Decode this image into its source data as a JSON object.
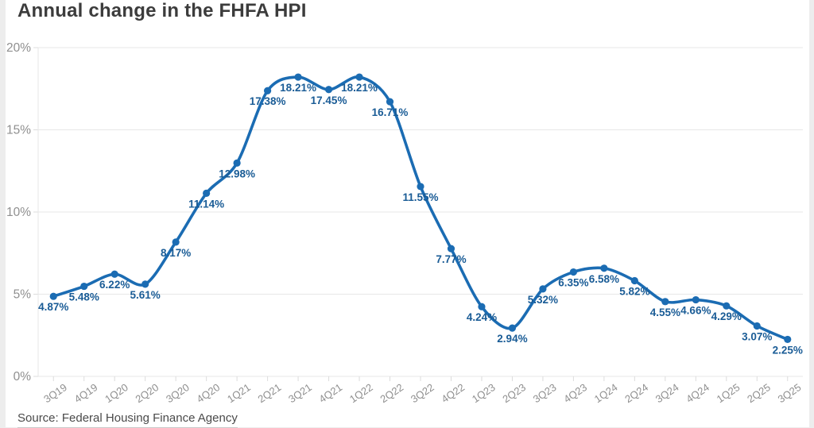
{
  "page": {
    "source": "Source: Federal Housing Finance Agency"
  },
  "chart_data": {
    "type": "line",
    "title": "Annual change in the FHFA HPI",
    "categories": [
      "3Q19",
      "4Q19",
      "1Q20",
      "2Q20",
      "3Q20",
      "4Q20",
      "1Q21",
      "2Q21",
      "3Q21",
      "4Q21",
      "1Q22",
      "2Q22",
      "3Q22",
      "4Q22",
      "1Q23",
      "2Q23",
      "3Q23",
      "4Q23",
      "1Q24",
      "2Q24",
      "3Q24",
      "4Q24",
      "1Q25",
      "2Q25",
      "3Q25"
    ],
    "series": [
      {
        "name": "Annual change in the FHFA HPI",
        "values": [
          4.87,
          5.48,
          6.22,
          5.61,
          8.17,
          11.14,
          12.98,
          17.38,
          18.21,
          17.45,
          18.21,
          16.71,
          11.55,
          7.77,
          4.24,
          2.94,
          5.32,
          6.35,
          6.58,
          5.82,
          4.55,
          4.66,
          4.29,
          3.07,
          2.25
        ],
        "point_labels": [
          "4.87%",
          "5.48%",
          "6.22%",
          "5.61%",
          "8.17%",
          "11.14%",
          "12.98%",
          "17.38%",
          "18.21%",
          "17.45%",
          "18.21%",
          "16.71%",
          "11.55%",
          "7.77%",
          "4.24%",
          "2.94%",
          "5.32%",
          "6.35%",
          "6.58%",
          "5.82%",
          "4.55%",
          "4.66%",
          "4.29%",
          "3.07%",
          "2.25%"
        ]
      }
    ],
    "xlabel": "",
    "ylabel": "",
    "ylim": [
      0,
      20
    ],
    "yticks": [
      0,
      5,
      10,
      15,
      20
    ],
    "ytick_labels": [
      "0%",
      "5%",
      "10%",
      "15%",
      "20%"
    ],
    "grid": true,
    "legend": "none",
    "colors": {
      "line": "#1b6cb3",
      "point_label": "#1a5c96",
      "grid": "#e7e7e7",
      "tick": "#dcdcdc",
      "axis_text": "#8f8f8f",
      "title": "#3c3c3c",
      "source": "#4a4a4a",
      "card_bg": "#ffffff",
      "page_bg": "#ededed"
    }
  }
}
